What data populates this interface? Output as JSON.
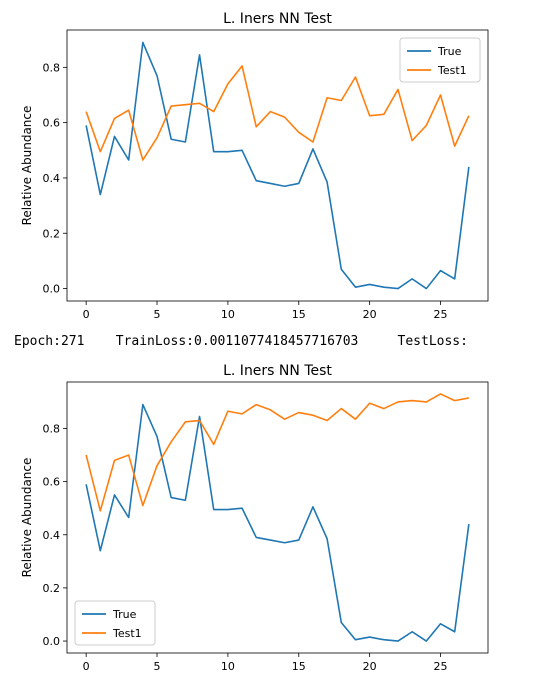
{
  "log_text": "Epoch:271    TrainLoss:0.0011077418457716703     TestLoss:",
  "chart_data": [
    {
      "type": "line",
      "title": "L. Iners NN Test",
      "xlabel": "",
      "ylabel": "Relative Abundance",
      "xlim": [
        -1.35,
        28.35
      ],
      "ylim": [
        -0.045,
        0.935
      ],
      "xticks": [
        0,
        5,
        10,
        15,
        20,
        25
      ],
      "yticks": [
        0.0,
        0.2,
        0.4,
        0.6,
        0.8
      ],
      "ytick_labels": [
        "0.0",
        "0.2",
        "0.4",
        "0.6",
        "0.8"
      ],
      "legend": "top-right",
      "grid": false,
      "x": [
        0,
        1,
        2,
        3,
        4,
        5,
        6,
        7,
        8,
        9,
        10,
        11,
        12,
        13,
        14,
        15,
        16,
        17,
        18,
        19,
        20,
        21,
        22,
        23,
        24,
        25,
        26,
        27
      ],
      "series": [
        {
          "name": "True",
          "color": "#1f77b4",
          "values": [
            0.59,
            0.34,
            0.55,
            0.465,
            0.89,
            0.77,
            0.54,
            0.53,
            0.845,
            0.495,
            0.495,
            0.5,
            0.39,
            0.38,
            0.37,
            0.38,
            0.505,
            0.385,
            0.07,
            0.005,
            0.015,
            0.005,
            0.0,
            0.035,
            0.0,
            0.065,
            0.035,
            0.44
          ]
        },
        {
          "name": "Test1",
          "color": "#ff7f0e",
          "values": [
            0.64,
            0.495,
            0.615,
            0.645,
            0.465,
            0.545,
            0.66,
            0.665,
            0.67,
            0.64,
            0.74,
            0.805,
            0.585,
            0.64,
            0.62,
            0.565,
            0.53,
            0.69,
            0.68,
            0.765,
            0.625,
            0.63,
            0.72,
            0.535,
            0.59,
            0.7,
            0.515,
            0.625
          ]
        }
      ]
    },
    {
      "type": "line",
      "title": "L. Iners NN Test",
      "xlabel": "",
      "ylabel": "Relative Abundance",
      "xlim": [
        -1.35,
        28.35
      ],
      "ylim": [
        -0.045,
        0.975
      ],
      "xticks": [
        0,
        5,
        10,
        15,
        20,
        25
      ],
      "yticks": [
        0.0,
        0.2,
        0.4,
        0.6,
        0.8
      ],
      "ytick_labels": [
        "0.0",
        "0.2",
        "0.4",
        "0.6",
        "0.8"
      ],
      "legend": "bottom-left",
      "grid": false,
      "x": [
        0,
        1,
        2,
        3,
        4,
        5,
        6,
        7,
        8,
        9,
        10,
        11,
        12,
        13,
        14,
        15,
        16,
        17,
        18,
        19,
        20,
        21,
        22,
        23,
        24,
        25,
        26,
        27
      ],
      "series": [
        {
          "name": "True",
          "color": "#1f77b4",
          "values": [
            0.59,
            0.34,
            0.55,
            0.465,
            0.89,
            0.77,
            0.54,
            0.53,
            0.845,
            0.495,
            0.495,
            0.5,
            0.39,
            0.38,
            0.37,
            0.38,
            0.505,
            0.385,
            0.07,
            0.005,
            0.015,
            0.005,
            0.0,
            0.035,
            0.0,
            0.065,
            0.035,
            0.44
          ]
        },
        {
          "name": "Test1",
          "color": "#ff7f0e",
          "values": [
            0.7,
            0.49,
            0.68,
            0.7,
            0.51,
            0.66,
            0.75,
            0.825,
            0.83,
            0.74,
            0.865,
            0.855,
            0.89,
            0.87,
            0.835,
            0.86,
            0.85,
            0.83,
            0.875,
            0.835,
            0.895,
            0.875,
            0.9,
            0.905,
            0.9,
            0.93,
            0.905,
            0.915
          ]
        }
      ]
    }
  ]
}
